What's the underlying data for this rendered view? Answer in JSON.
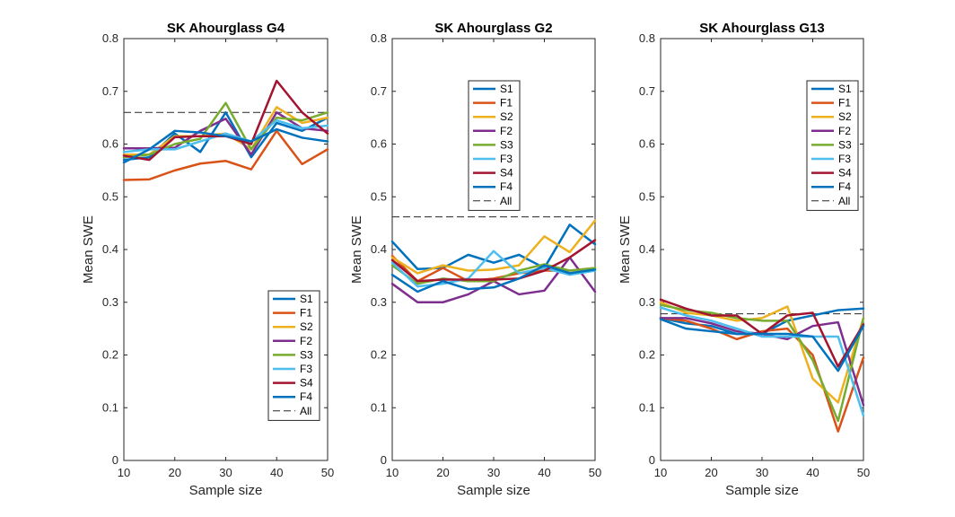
{
  "chart_data": [
    {
      "type": "line",
      "title": "SK Ahourglass G4",
      "xlabel": "Sample size",
      "ylabel": "Mean SWE",
      "xlim": [
        10,
        50
      ],
      "ylim": [
        0,
        0.8
      ],
      "xticks": [
        "10",
        "20",
        "30",
        "40",
        "50"
      ],
      "yticks": [
        "0",
        "0.1",
        "0.2",
        "0.3",
        "0.4",
        "0.5",
        "0.6",
        "0.7",
        "0.8"
      ],
      "x": [
        10,
        15,
        20,
        25,
        30,
        35,
        40,
        45,
        50
      ],
      "legend_position": "bottom-right",
      "series": [
        {
          "name": "S1",
          "color": "#0072BD",
          "values": [
            0.57,
            0.575,
            0.62,
            0.585,
            0.66,
            0.575,
            0.64,
            0.625,
            0.65
          ]
        },
        {
          "name": "F1",
          "color": "#D95319",
          "values": [
            0.532,
            0.533,
            0.55,
            0.563,
            0.568,
            0.552,
            0.625,
            0.562,
            0.59
          ]
        },
        {
          "name": "S2",
          "color": "#EDB120",
          "values": [
            0.58,
            0.58,
            0.615,
            0.615,
            0.62,
            0.59,
            0.67,
            0.64,
            0.65
          ]
        },
        {
          "name": "F2",
          "color": "#7E2F8E",
          "values": [
            0.592,
            0.592,
            0.593,
            0.625,
            0.648,
            0.58,
            0.66,
            0.63,
            0.625
          ]
        },
        {
          "name": "S3",
          "color": "#77AC30",
          "values": [
            0.575,
            0.58,
            0.6,
            0.61,
            0.678,
            0.59,
            0.65,
            0.645,
            0.66
          ]
        },
        {
          "name": "F3",
          "color": "#4DBEEE",
          "values": [
            0.585,
            0.59,
            0.59,
            0.605,
            0.62,
            0.605,
            0.645,
            0.63,
            0.635
          ]
        },
        {
          "name": "S4",
          "color": "#A2142F",
          "values": [
            0.578,
            0.57,
            0.613,
            0.615,
            0.615,
            0.6,
            0.72,
            0.66,
            0.62
          ]
        },
        {
          "name": "F4",
          "color": "#0072BD",
          "values": [
            0.565,
            0.59,
            0.625,
            0.622,
            0.615,
            0.605,
            0.628,
            0.612,
            0.605
          ]
        }
      ],
      "reference": {
        "name": "All",
        "value": 0.66
      }
    },
    {
      "type": "line",
      "title": "SK Ahourglass G2",
      "xlabel": "Sample size",
      "ylabel": "Mean SWE",
      "xlim": [
        10,
        50
      ],
      "ylim": [
        0,
        0.8
      ],
      "xticks": [
        "10",
        "20",
        "30",
        "40",
        "50"
      ],
      "yticks": [
        "0",
        "0.1",
        "0.2",
        "0.3",
        "0.4",
        "0.5",
        "0.6",
        "0.7",
        "0.8"
      ],
      "x": [
        10,
        15,
        20,
        25,
        30,
        35,
        40,
        45,
        50
      ],
      "legend_position": "top",
      "series": [
        {
          "name": "S1",
          "color": "#0072BD",
          "values": [
            0.415,
            0.363,
            0.365,
            0.39,
            0.375,
            0.39,
            0.365,
            0.447,
            0.41
          ]
        },
        {
          "name": "F1",
          "color": "#D95319",
          "values": [
            0.388,
            0.34,
            0.365,
            0.34,
            0.345,
            0.355,
            0.36,
            0.36,
            0.365
          ]
        },
        {
          "name": "S2",
          "color": "#EDB120",
          "values": [
            0.385,
            0.355,
            0.37,
            0.36,
            0.362,
            0.37,
            0.425,
            0.395,
            0.455
          ]
        },
        {
          "name": "F2",
          "color": "#7E2F8E",
          "values": [
            0.335,
            0.3,
            0.3,
            0.315,
            0.34,
            0.315,
            0.322,
            0.385,
            0.32
          ]
        },
        {
          "name": "S3",
          "color": "#77AC30",
          "values": [
            0.37,
            0.335,
            0.345,
            0.34,
            0.34,
            0.36,
            0.372,
            0.36,
            0.365
          ]
        },
        {
          "name": "F3",
          "color": "#4DBEEE",
          "values": [
            0.375,
            0.33,
            0.335,
            0.345,
            0.397,
            0.355,
            0.365,
            0.352,
            0.36
          ]
        },
        {
          "name": "S4",
          "color": "#A2142F",
          "values": [
            0.38,
            0.34,
            0.343,
            0.343,
            0.343,
            0.345,
            0.36,
            0.385,
            0.418
          ]
        },
        {
          "name": "F4",
          "color": "#0072BD",
          "values": [
            0.352,
            0.32,
            0.34,
            0.325,
            0.328,
            0.345,
            0.37,
            0.355,
            0.362
          ]
        }
      ],
      "reference": {
        "name": "All",
        "value": 0.462
      }
    },
    {
      "type": "line",
      "title": "SK Ahourglass G13",
      "xlabel": "Sample size",
      "ylabel": "Mean SWE",
      "xlim": [
        10,
        50
      ],
      "ylim": [
        0,
        0.8
      ],
      "xticks": [
        "10",
        "20",
        "30",
        "40",
        "50"
      ],
      "yticks": [
        "0",
        "0.1",
        "0.2",
        "0.3",
        "0.4",
        "0.5",
        "0.6",
        "0.7",
        "0.8"
      ],
      "x": [
        10,
        15,
        20,
        25,
        30,
        35,
        40,
        45,
        50
      ],
      "legend_position": "top-right",
      "series": [
        {
          "name": "S1",
          "color": "#0072BD",
          "values": [
            0.27,
            0.26,
            0.255,
            0.24,
            0.24,
            0.265,
            0.275,
            0.285,
            0.288
          ]
        },
        {
          "name": "F1",
          "color": "#D95319",
          "values": [
            0.27,
            0.265,
            0.25,
            0.23,
            0.245,
            0.25,
            0.2,
            0.055,
            0.195
          ]
        },
        {
          "name": "S2",
          "color": "#EDB120",
          "values": [
            0.3,
            0.28,
            0.275,
            0.265,
            0.27,
            0.292,
            0.155,
            0.11,
            0.27
          ]
        },
        {
          "name": "F2",
          "color": "#7E2F8E",
          "values": [
            0.27,
            0.27,
            0.26,
            0.245,
            0.24,
            0.23,
            0.255,
            0.262,
            0.105
          ]
        },
        {
          "name": "S3",
          "color": "#77AC30",
          "values": [
            0.295,
            0.285,
            0.28,
            0.27,
            0.265,
            0.265,
            0.19,
            0.075,
            0.27
          ]
        },
        {
          "name": "F3",
          "color": "#4DBEEE",
          "values": [
            0.29,
            0.275,
            0.265,
            0.25,
            0.235,
            0.235,
            0.235,
            0.235,
            0.085
          ]
        },
        {
          "name": "S4",
          "color": "#A2142F",
          "values": [
            0.305,
            0.288,
            0.275,
            0.275,
            0.24,
            0.275,
            0.28,
            0.178,
            0.258
          ]
        },
        {
          "name": "F4",
          "color": "#0072BD",
          "values": [
            0.268,
            0.25,
            0.245,
            0.24,
            0.24,
            0.24,
            0.235,
            0.17,
            0.255
          ]
        }
      ],
      "reference": {
        "name": "All",
        "value": 0.278
      }
    }
  ]
}
